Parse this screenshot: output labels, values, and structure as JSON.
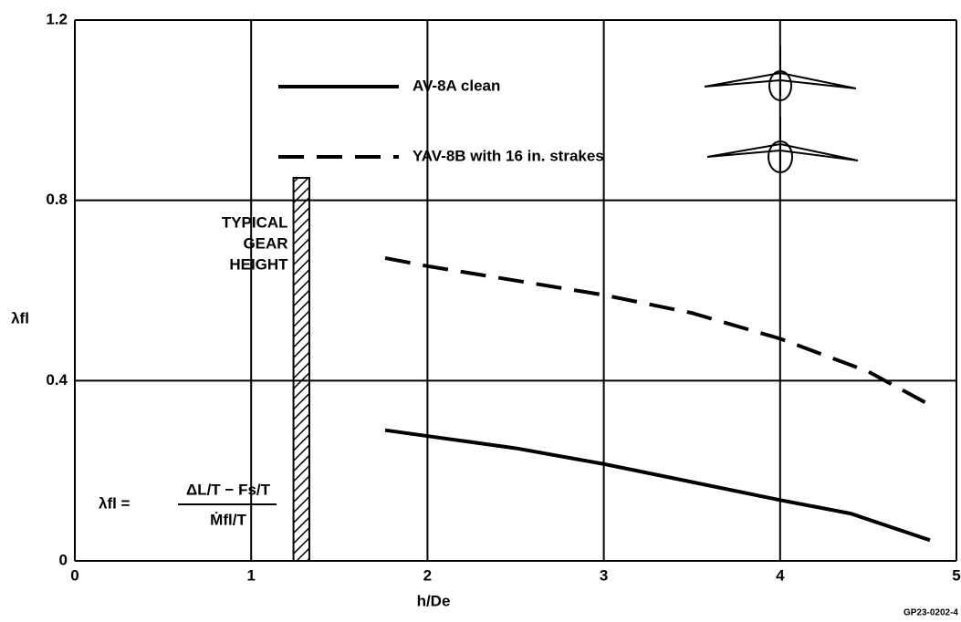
{
  "chart_data": {
    "type": "line",
    "x_label": "h/De",
    "y_label": "λfl",
    "xlim": [
      0,
      5
    ],
    "ylim": [
      0,
      1.2
    ],
    "xticks": [
      0,
      1,
      2,
      3,
      4,
      5
    ],
    "yticks": [
      0,
      0.4,
      0.8,
      1.2
    ],
    "grid": true,
    "series": [
      {
        "name": "AV-8A clean",
        "color": "#000000",
        "dash": "solid",
        "x": [
          1.76,
          2.5,
          3,
          3.5,
          4,
          4.4,
          4.85
        ],
        "values": [
          0.29,
          0.25,
          0.215,
          0.175,
          0.135,
          0.105,
          0.046
        ]
      },
      {
        "name": "YAV-8B with 16 in. strakes",
        "color": "#000000",
        "dash": "dashed",
        "x": [
          1.76,
          2,
          3,
          3.5,
          4,
          4.5,
          4.85
        ],
        "values": [
          0.672,
          0.654,
          0.59,
          0.55,
          0.493,
          0.42,
          0.346
        ]
      }
    ],
    "gear_band": {
      "x": [
        1.24,
        1.33
      ],
      "top": 0.85,
      "label": [
        "TYPICAL",
        "GEAR",
        "HEIGHT"
      ]
    },
    "formula": {
      "lhs": "λfl =",
      "numerator": "ΔL/T − Fs/T",
      "denominator": "Ṁfl/T"
    },
    "figure_code": "GP23-0202-4"
  }
}
